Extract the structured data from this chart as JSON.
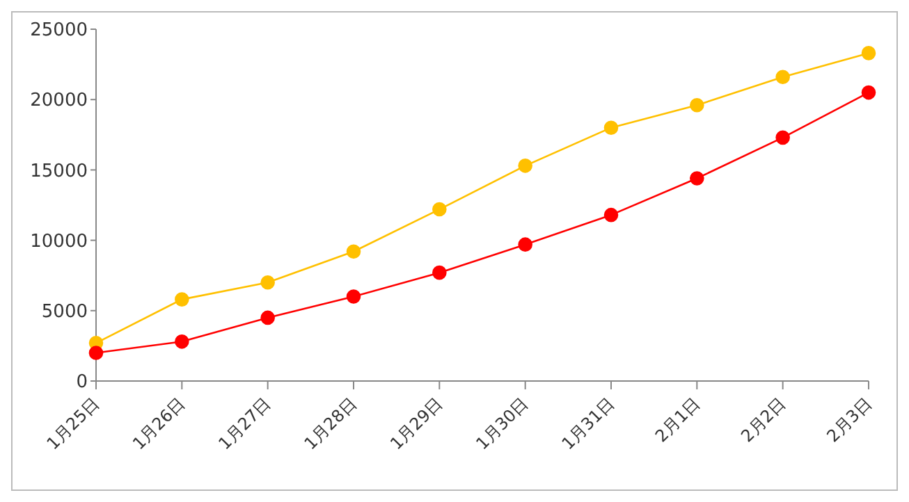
{
  "chart_data": {
    "type": "line",
    "categories": [
      "1月25日",
      "1月26日",
      "1月27日",
      "1月28日",
      "1月29日",
      "1月30日",
      "1月31日",
      "2月1日",
      "2月2日",
      "2月3日"
    ],
    "series": [
      {
        "color": "#ffc000",
        "values": [
          2700,
          5800,
          7000,
          9200,
          12200,
          15300,
          18000,
          19600,
          21600,
          23300
        ]
      },
      {
        "color": "#ff0000",
        "values": [
          2000,
          2800,
          4500,
          6000,
          7700,
          9700,
          11800,
          14400,
          17300,
          20500
        ]
      }
    ],
    "ylim": [
      0,
      25000
    ],
    "yticks": [
      0,
      5000,
      10000,
      15000,
      20000,
      25000
    ],
    "grid": false,
    "legend": false,
    "marker": "circle",
    "line_style": "solid"
  }
}
